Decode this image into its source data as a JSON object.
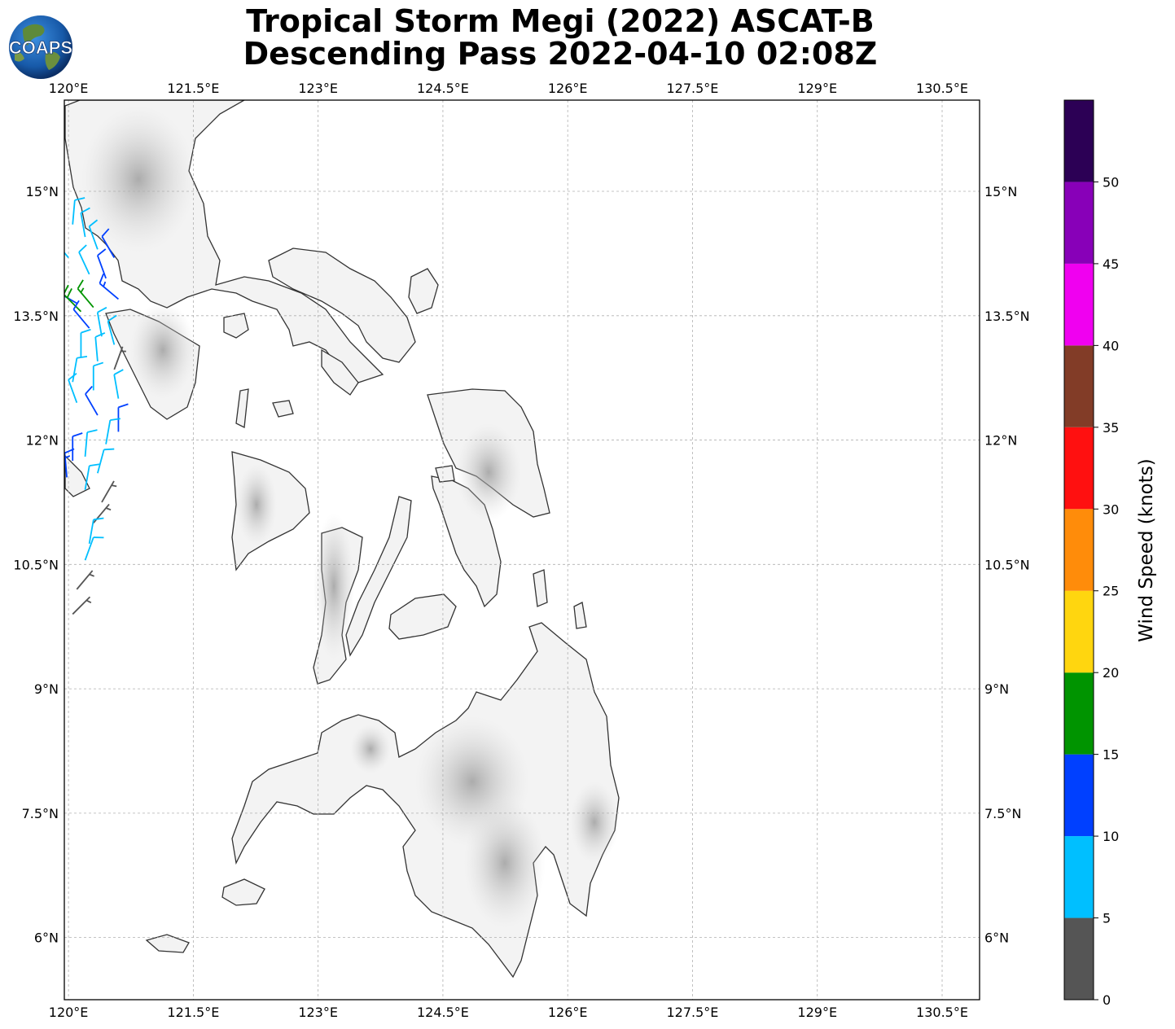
{
  "title": {
    "line1": "Tropical Storm Megi (2022) ASCAT-B",
    "line2": "Descending Pass 2022-04-10 02:08Z"
  },
  "logo": {
    "text": "COAPS"
  },
  "map": {
    "lon_range": [
      119.95,
      130.95
    ],
    "lat_range": [
      5.25,
      16.1
    ],
    "lon_ticks": [
      "120°E",
      "121.5°E",
      "123°E",
      "124.5°E",
      "126°E",
      "127.5°E",
      "129°E",
      "130.5°E"
    ],
    "lat_ticks": [
      "6°N",
      "7.5°N",
      "9°N",
      "10.5°N",
      "12°N",
      "13.5°N",
      "15°N"
    ],
    "lon_tick_values": [
      120,
      121.5,
      123,
      124.5,
      126,
      127.5,
      129,
      130.5
    ],
    "lat_tick_values": [
      6,
      7.5,
      9,
      10.5,
      12,
      13.5,
      15
    ],
    "grid": true,
    "land_color": "#f3f3f3",
    "coast_color": "#333333"
  },
  "colorbar": {
    "label": "Wind Speed (knots)",
    "ticks": [
      "0",
      "5",
      "10",
      "15",
      "20",
      "25",
      "30",
      "35",
      "40",
      "45",
      "50"
    ],
    "colors": [
      "#555555",
      "#00bfff",
      "#0040ff",
      "#009400",
      "#ffd60f",
      "#ff8c0a",
      "#ff1010",
      "#823c27",
      "#f000f0",
      "#8800b8",
      "#2c0055"
    ]
  },
  "wind_barbs": {
    "units": "knots",
    "points": [
      {
        "lat": 14.6,
        "lon": 120.05,
        "speed": 8,
        "dir": 5
      },
      {
        "lat": 14.45,
        "lon": 120.2,
        "speed": 8,
        "dir": 350
      },
      {
        "lat": 14.3,
        "lon": 120.35,
        "speed": 9,
        "dir": 340
      },
      {
        "lat": 14.2,
        "lon": 120.55,
        "speed": 12,
        "dir": 330
      },
      {
        "lat": 14.2,
        "lon": 120.0,
        "speed": 7,
        "dir": 320
      },
      {
        "lat": 14.0,
        "lon": 120.25,
        "speed": 9,
        "dir": 335
      },
      {
        "lat": 13.95,
        "lon": 120.45,
        "speed": 12,
        "dir": 340
      },
      {
        "lat": 13.7,
        "lon": 120.6,
        "speed": 13,
        "dir": 310
      },
      {
        "lat": 13.65,
        "lon": 120.1,
        "speed": 13,
        "dir": 300
      },
      {
        "lat": 13.6,
        "lon": 120.3,
        "speed": 17,
        "dir": 320
      },
      {
        "lat": 13.55,
        "lon": 120.15,
        "speed": 18,
        "dir": 315
      },
      {
        "lat": 13.35,
        "lon": 120.25,
        "speed": 12,
        "dir": 320
      },
      {
        "lat": 13.25,
        "lon": 120.4,
        "speed": 8,
        "dir": 350
      },
      {
        "lat": 13.15,
        "lon": 120.55,
        "speed": 9,
        "dir": 345
      },
      {
        "lat": 13.0,
        "lon": 120.15,
        "speed": 8,
        "dir": 0
      },
      {
        "lat": 12.95,
        "lon": 120.35,
        "speed": 9,
        "dir": 355
      },
      {
        "lat": 12.85,
        "lon": 120.55,
        "speed": 4,
        "dir": 20
      },
      {
        "lat": 12.7,
        "lon": 120.05,
        "speed": 8,
        "dir": 10
      },
      {
        "lat": 12.6,
        "lon": 120.3,
        "speed": 9,
        "dir": 0
      },
      {
        "lat": 12.5,
        "lon": 120.6,
        "speed": 8,
        "dir": 350
      },
      {
        "lat": 12.45,
        "lon": 120.1,
        "speed": 8,
        "dir": 340
      },
      {
        "lat": 12.3,
        "lon": 120.35,
        "speed": 12,
        "dir": 330
      },
      {
        "lat": 12.1,
        "lon": 120.6,
        "speed": 11,
        "dir": 0
      },
      {
        "lat": 11.95,
        "lon": 120.45,
        "speed": 9,
        "dir": 10
      },
      {
        "lat": 11.8,
        "lon": 120.2,
        "speed": 8,
        "dir": 5
      },
      {
        "lat": 11.75,
        "lon": 120.05,
        "speed": 12,
        "dir": 0
      },
      {
        "lat": 11.55,
        "lon": 119.98,
        "speed": 13,
        "dir": 355
      },
      {
        "lat": 11.6,
        "lon": 120.35,
        "speed": 8,
        "dir": 15
      },
      {
        "lat": 11.4,
        "lon": 120.2,
        "speed": 8,
        "dir": 10
      },
      {
        "lat": 11.25,
        "lon": 120.4,
        "speed": 4,
        "dir": 30
      },
      {
        "lat": 11.0,
        "lon": 120.3,
        "speed": 4,
        "dir": 40
      },
      {
        "lat": 10.75,
        "lon": 120.25,
        "speed": 8,
        "dir": 10
      },
      {
        "lat": 10.55,
        "lon": 120.2,
        "speed": 8,
        "dir": 20
      },
      {
        "lat": 10.2,
        "lon": 120.1,
        "speed": 4,
        "dir": 40
      },
      {
        "lat": 9.9,
        "lon": 120.05,
        "speed": 4,
        "dir": 45
      }
    ]
  }
}
